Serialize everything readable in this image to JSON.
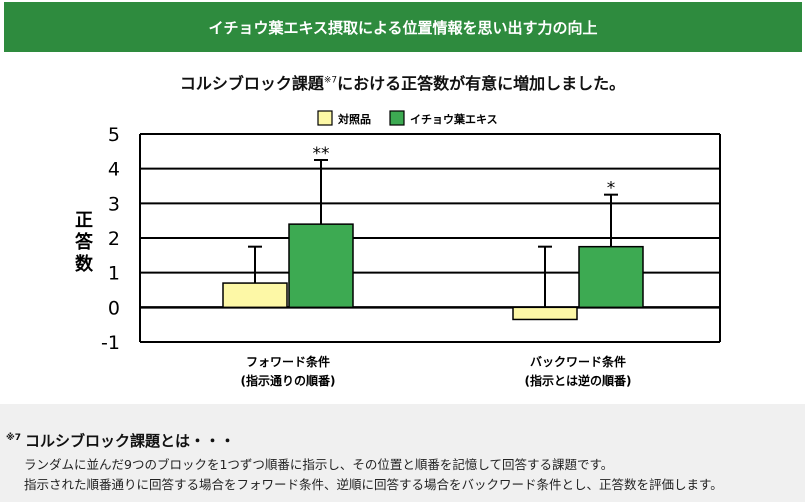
{
  "banner": {
    "title": "イチョウ葉エキス摂取による位置情報を思い出す力の向上"
  },
  "chart_data": {
    "type": "bar",
    "title": "コルシブロック課題",
    "title_sup": "※7",
    "title_rest": "における正答数が有意に増加しました。",
    "ylabel": "正答数",
    "ylim": [
      -1,
      5
    ],
    "yticks": [
      "5",
      "4",
      "3",
      "2",
      "1",
      "0",
      "-1"
    ],
    "grid": true,
    "legend_position": "top-center",
    "categories": [
      {
        "line1": "フォワード条件",
        "line2": "(指示通りの順番)"
      },
      {
        "line1": "バックワード条件",
        "line2": "(指示とは逆の順番)"
      }
    ],
    "series": [
      {
        "name": "対照品",
        "color": "#fdf8a6",
        "values": [
          0.7,
          -0.35
        ],
        "error": [
          1.05,
          2.1
        ],
        "marks": [
          "",
          ""
        ]
      },
      {
        "name": "イチョウ葉エキス",
        "color": "#3daa52",
        "values": [
          2.4,
          1.75
        ],
        "error": [
          1.85,
          1.5
        ],
        "marks": [
          "**",
          "*"
        ]
      }
    ]
  },
  "note": {
    "marker": "※7",
    "title": "コルシブロック課題とは・・・",
    "line1": "ランダムに並んだ9つのブロックを1つずつ順番に指示し、その位置と順番を記憶して回答する課題です。",
    "line2": "指示された順番通りに回答する場合をフォワード条件、逆順に回答する場合をバックワード条件とし、正答数を評価します。"
  }
}
